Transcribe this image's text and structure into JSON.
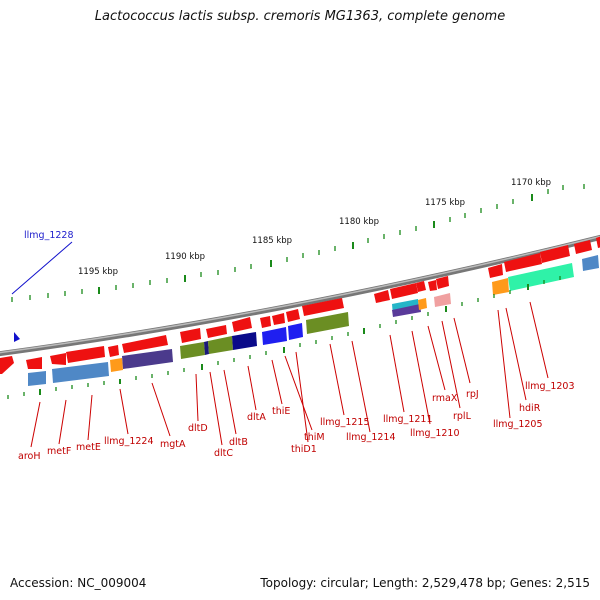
{
  "title": "Lactococcus lactis subsp. cremoris MG1363, complete genome",
  "footer": {
    "accession": "Accession: NC_009004",
    "topology": "Topology: circular; Length: 2,529,478 bp; Genes: 2,515"
  },
  "scale_labels": [
    "1195 kbp",
    "1190 kbp",
    "1185 kbp",
    "1180 kbp",
    "1175 kbp",
    "1170 kbp"
  ],
  "highlight_label": "llmg_1228",
  "gene_labels": [
    "aroH",
    "metF",
    "metE",
    "llmg_1224",
    "mgtA",
    "dltD",
    "dltC",
    "dltB",
    "dltA",
    "thiE",
    "thiM",
    "thiD1",
    "llmg_1215",
    "llmg_1214",
    "llmg_1211",
    "llmg_1210",
    "rmaX",
    "rplL",
    "rpJ",
    "hdiR",
    "llmg_1205",
    "llmg_1203"
  ],
  "colors": {
    "cds_arrow": "#ee1111",
    "backbone": "#888888",
    "label": "#c00000",
    "highlight": "#1010cc"
  }
}
